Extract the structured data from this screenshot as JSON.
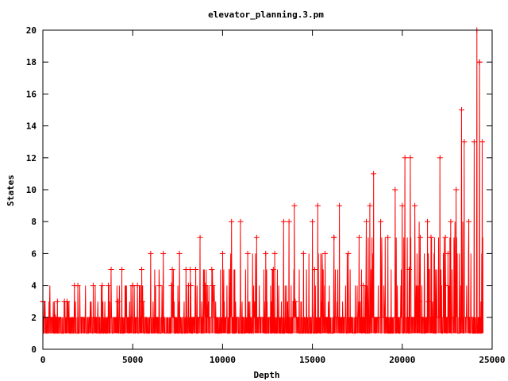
{
  "chart_data": {
    "type": "line",
    "title": "elevator_planning.3.pm",
    "xlabel": "Depth",
    "ylabel": "States",
    "xlim": [
      0,
      25000
    ],
    "ylim": [
      0,
      20
    ],
    "xticks": [
      "0",
      "5000",
      "10000",
      "15000",
      "20000",
      "25000"
    ],
    "yticks": [
      "0",
      "2",
      "4",
      "6",
      "8",
      "10",
      "12",
      "14",
      "16",
      "18",
      "20"
    ],
    "grid": false,
    "legend": false,
    "series_color": "#ff0000",
    "marker": "plus",
    "depth_max": 24500,
    "peaks": [
      {
        "x": 0,
        "y": 3
      },
      {
        "x": 700,
        "y": 2
      },
      {
        "x": 1200,
        "y": 3
      },
      {
        "x": 1950,
        "y": 4
      },
      {
        "x": 2800,
        "y": 4
      },
      {
        "x": 3300,
        "y": 4
      },
      {
        "x": 3800,
        "y": 5
      },
      {
        "x": 4400,
        "y": 5
      },
      {
        "x": 5000,
        "y": 4
      },
      {
        "x": 5500,
        "y": 5
      },
      {
        "x": 6000,
        "y": 6
      },
      {
        "x": 6700,
        "y": 6
      },
      {
        "x": 7200,
        "y": 5
      },
      {
        "x": 7600,
        "y": 6
      },
      {
        "x": 8200,
        "y": 5
      },
      {
        "x": 8750,
        "y": 7
      },
      {
        "x": 9400,
        "y": 5
      },
      {
        "x": 10000,
        "y": 6
      },
      {
        "x": 10500,
        "y": 8
      },
      {
        "x": 11000,
        "y": 8
      },
      {
        "x": 11400,
        "y": 6
      },
      {
        "x": 11900,
        "y": 7
      },
      {
        "x": 12400,
        "y": 6
      },
      {
        "x": 12900,
        "y": 6
      },
      {
        "x": 13400,
        "y": 8
      },
      {
        "x": 13700,
        "y": 8
      },
      {
        "x": 14000,
        "y": 9
      },
      {
        "x": 14500,
        "y": 6
      },
      {
        "x": 15000,
        "y": 8
      },
      {
        "x": 15300,
        "y": 9
      },
      {
        "x": 15700,
        "y": 6
      },
      {
        "x": 16200,
        "y": 7
      },
      {
        "x": 16500,
        "y": 9
      },
      {
        "x": 17000,
        "y": 6
      },
      {
        "x": 17600,
        "y": 7
      },
      {
        "x": 18000,
        "y": 8
      },
      {
        "x": 18200,
        "y": 9
      },
      {
        "x": 18400,
        "y": 11
      },
      {
        "x": 18800,
        "y": 8
      },
      {
        "x": 19200,
        "y": 7
      },
      {
        "x": 19600,
        "y": 10
      },
      {
        "x": 20000,
        "y": 9
      },
      {
        "x": 20150,
        "y": 12
      },
      {
        "x": 20450,
        "y": 12
      },
      {
        "x": 20700,
        "y": 9
      },
      {
        "x": 21000,
        "y": 7
      },
      {
        "x": 21400,
        "y": 8
      },
      {
        "x": 21600,
        "y": 7
      },
      {
        "x": 22100,
        "y": 12
      },
      {
        "x": 22400,
        "y": 7
      },
      {
        "x": 22700,
        "y": 8
      },
      {
        "x": 23000,
        "y": 10
      },
      {
        "x": 23300,
        "y": 15
      },
      {
        "x": 23450,
        "y": 13
      },
      {
        "x": 23700,
        "y": 8
      },
      {
        "x": 24000,
        "y": 13
      },
      {
        "x": 24150,
        "y": 20
      },
      {
        "x": 24300,
        "y": 18
      },
      {
        "x": 24450,
        "y": 13
      }
    ]
  }
}
